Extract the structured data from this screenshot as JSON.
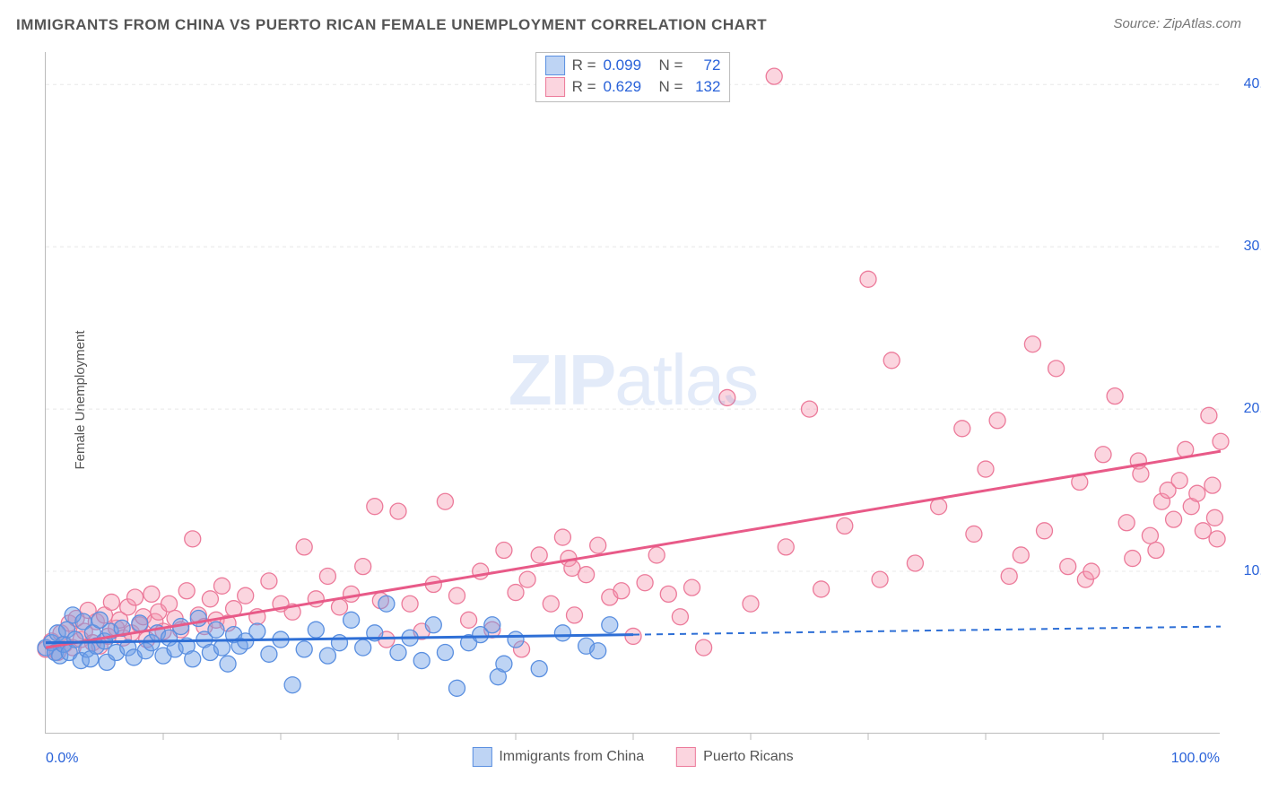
{
  "title": "IMMIGRANTS FROM CHINA VS PUERTO RICAN FEMALE UNEMPLOYMENT CORRELATION CHART",
  "source": "Source: ZipAtlas.com",
  "ylabel": "Female Unemployment",
  "watermark": {
    "bold": "ZIP",
    "light": "atlas"
  },
  "chart": {
    "type": "scatter",
    "xlim": [
      0,
      100
    ],
    "ylim": [
      0,
      42
    ],
    "x_ticks": [
      "0.0%",
      "100.0%"
    ],
    "y_ticks": [
      {
        "v": 10,
        "label": "10.0%"
      },
      {
        "v": 20,
        "label": "20.0%"
      },
      {
        "v": 30,
        "label": "30.0%"
      },
      {
        "v": 40,
        "label": "40.0%"
      }
    ],
    "short_x_ticks": [
      10,
      20,
      30,
      40,
      50,
      60,
      70,
      80,
      90
    ],
    "background_color": "#ffffff",
    "grid_color": "#e8e8e8",
    "axis_color": "#bbbbbb",
    "tick_label_color": "#2962d9"
  },
  "series": {
    "blue": {
      "label": "Immigrants from China",
      "R": "0.099",
      "N": "72",
      "fill": "rgba(110,160,230,0.45)",
      "stroke": "#5a8fe0",
      "line_color": "#2e6fd6",
      "line_dash_color": "#2e6fd6",
      "marker_r": 9,
      "trend": {
        "y_at_x0": 5.6,
        "y_at_x50": 6.1,
        "y_at_x100": 6.6
      },
      "points": [
        [
          0,
          5.3
        ],
        [
          0.5,
          5.6
        ],
        [
          0.8,
          5.0
        ],
        [
          1,
          6.2
        ],
        [
          1.2,
          4.8
        ],
        [
          1.5,
          5.5
        ],
        [
          1.8,
          6.4
        ],
        [
          2,
          5.0
        ],
        [
          2.3,
          7.3
        ],
        [
          2.5,
          5.8
        ],
        [
          3,
          4.5
        ],
        [
          3.2,
          6.9
        ],
        [
          3.5,
          5.2
        ],
        [
          3.8,
          4.6
        ],
        [
          4,
          6.2
        ],
        [
          4.3,
          5.4
        ],
        [
          4.6,
          7.0
        ],
        [
          5,
          5.7
        ],
        [
          5.2,
          4.4
        ],
        [
          5.5,
          6.3
        ],
        [
          6,
          5.0
        ],
        [
          6.5,
          6.5
        ],
        [
          7,
          5.3
        ],
        [
          7.5,
          4.7
        ],
        [
          8,
          6.8
        ],
        [
          8.5,
          5.1
        ],
        [
          9,
          5.6
        ],
        [
          9.5,
          6.2
        ],
        [
          10,
          4.8
        ],
        [
          10.5,
          5.9
        ],
        [
          11,
          5.2
        ],
        [
          11.5,
          6.6
        ],
        [
          12,
          5.4
        ],
        [
          12.5,
          4.6
        ],
        [
          13,
          7.1
        ],
        [
          13.5,
          5.8
        ],
        [
          14,
          5.0
        ],
        [
          14.5,
          6.4
        ],
        [
          15,
          5.3
        ],
        [
          15.5,
          4.3
        ],
        [
          16,
          6.1
        ],
        [
          16.5,
          5.4
        ],
        [
          17,
          5.7
        ],
        [
          18,
          6.3
        ],
        [
          19,
          4.9
        ],
        [
          20,
          5.8
        ],
        [
          21,
          3.0
        ],
        [
          22,
          5.2
        ],
        [
          23,
          6.4
        ],
        [
          24,
          4.8
        ],
        [
          25,
          5.6
        ],
        [
          26,
          7.0
        ],
        [
          27,
          5.3
        ],
        [
          28,
          6.2
        ],
        [
          29,
          8.0
        ],
        [
          30,
          5.0
        ],
        [
          31,
          5.9
        ],
        [
          32,
          4.5
        ],
        [
          33,
          6.7
        ],
        [
          34,
          5.0
        ],
        [
          35,
          2.8
        ],
        [
          36,
          5.6
        ],
        [
          37,
          6.1
        ],
        [
          38,
          6.7
        ],
        [
          38.5,
          3.5
        ],
        [
          39,
          4.3
        ],
        [
          40,
          5.8
        ],
        [
          42,
          4.0
        ],
        [
          44,
          6.2
        ],
        [
          46,
          5.4
        ],
        [
          47,
          5.1
        ],
        [
          48,
          6.7
        ]
      ]
    },
    "pink": {
      "label": "Puerto Ricans",
      "R": "0.629",
      "N": "132",
      "fill": "rgba(245,150,175,0.40)",
      "stroke": "#ec7a9a",
      "line_color": "#e85a88",
      "marker_r": 9,
      "trend": {
        "y_at_x0": 5.3,
        "y_at_x100": 17.4
      },
      "points": [
        [
          0,
          5.2
        ],
        [
          0.5,
          5.7
        ],
        [
          1,
          5.0
        ],
        [
          1.3,
          6.2
        ],
        [
          1.6,
          5.5
        ],
        [
          2,
          6.8
        ],
        [
          2.3,
          5.3
        ],
        [
          2.6,
          7.1
        ],
        [
          3,
          5.8
        ],
        [
          3.3,
          6.3
        ],
        [
          3.6,
          7.6
        ],
        [
          4,
          5.6
        ],
        [
          4.3,
          6.9
        ],
        [
          4.6,
          5.4
        ],
        [
          5,
          7.3
        ],
        [
          5.3,
          6.0
        ],
        [
          5.6,
          8.1
        ],
        [
          6,
          6.5
        ],
        [
          6.3,
          7.0
        ],
        [
          6.6,
          5.9
        ],
        [
          7,
          7.8
        ],
        [
          7.3,
          6.2
        ],
        [
          7.6,
          8.4
        ],
        [
          8,
          6.7
        ],
        [
          8.3,
          7.2
        ],
        [
          8.6,
          5.8
        ],
        [
          9,
          8.6
        ],
        [
          9.3,
          6.9
        ],
        [
          9.6,
          7.5
        ],
        [
          10,
          6.3
        ],
        [
          10.5,
          8.0
        ],
        [
          11,
          7.1
        ],
        [
          11.5,
          6.4
        ],
        [
          12,
          8.8
        ],
        [
          12.5,
          12.0
        ],
        [
          13,
          7.3
        ],
        [
          13.5,
          6.6
        ],
        [
          14,
          8.3
        ],
        [
          14.5,
          7.0
        ],
        [
          15,
          9.1
        ],
        [
          15.5,
          6.8
        ],
        [
          16,
          7.7
        ],
        [
          17,
          8.5
        ],
        [
          18,
          7.2
        ],
        [
          19,
          9.4
        ],
        [
          20,
          8.0
        ],
        [
          21,
          7.5
        ],
        [
          22,
          11.5
        ],
        [
          23,
          8.3
        ],
        [
          24,
          9.7
        ],
        [
          25,
          7.8
        ],
        [
          26,
          8.6
        ],
        [
          27,
          10.3
        ],
        [
          28,
          14.0
        ],
        [
          28.5,
          8.2
        ],
        [
          29,
          5.8
        ],
        [
          30,
          13.7
        ],
        [
          31,
          8.0
        ],
        [
          32,
          6.3
        ],
        [
          33,
          9.2
        ],
        [
          34,
          14.3
        ],
        [
          35,
          8.5
        ],
        [
          36,
          7.0
        ],
        [
          37,
          10.0
        ],
        [
          38,
          6.4
        ],
        [
          39,
          11.3
        ],
        [
          40,
          8.7
        ],
        [
          40.5,
          5.2
        ],
        [
          41,
          9.5
        ],
        [
          42,
          11.0
        ],
        [
          43,
          8.0
        ],
        [
          44,
          12.1
        ],
        [
          44.5,
          10.8
        ],
        [
          44.8,
          10.2
        ],
        [
          45,
          7.3
        ],
        [
          46,
          9.8
        ],
        [
          47,
          11.6
        ],
        [
          48,
          8.4
        ],
        [
          49,
          8.8
        ],
        [
          50,
          6.0
        ],
        [
          51,
          9.3
        ],
        [
          52,
          11.0
        ],
        [
          53,
          8.6
        ],
        [
          54,
          7.2
        ],
        [
          55,
          9.0
        ],
        [
          56,
          5.3
        ],
        [
          58,
          20.7
        ],
        [
          60,
          8.0
        ],
        [
          62,
          40.5
        ],
        [
          63,
          11.5
        ],
        [
          65,
          20.0
        ],
        [
          66,
          8.9
        ],
        [
          68,
          12.8
        ],
        [
          70,
          28.0
        ],
        [
          71,
          9.5
        ],
        [
          72,
          23.0
        ],
        [
          74,
          10.5
        ],
        [
          76,
          14.0
        ],
        [
          78,
          18.8
        ],
        [
          79,
          12.3
        ],
        [
          80,
          16.3
        ],
        [
          81,
          19.3
        ],
        [
          82,
          9.7
        ],
        [
          83,
          11.0
        ],
        [
          84,
          24.0
        ],
        [
          85,
          12.5
        ],
        [
          86,
          22.5
        ],
        [
          87,
          10.3
        ],
        [
          88,
          15.5
        ],
        [
          88.5,
          9.5
        ],
        [
          89,
          10.0
        ],
        [
          90,
          17.2
        ],
        [
          91,
          20.8
        ],
        [
          92,
          13.0
        ],
        [
          92.5,
          10.8
        ],
        [
          93,
          16.8
        ],
        [
          93.2,
          16.0
        ],
        [
          94,
          12.2
        ],
        [
          94.5,
          11.3
        ],
        [
          95,
          14.3
        ],
        [
          95.5,
          15.0
        ],
        [
          96,
          13.2
        ],
        [
          96.5,
          15.6
        ],
        [
          97,
          17.5
        ],
        [
          97.5,
          14.0
        ],
        [
          98,
          14.8
        ],
        [
          98.5,
          12.5
        ],
        [
          99,
          19.6
        ],
        [
          99.3,
          15.3
        ],
        [
          99.5,
          13.3
        ],
        [
          99.7,
          12.0
        ],
        [
          100,
          18.0
        ]
      ]
    }
  },
  "bottom_legend": [
    {
      "key": "blue",
      "label": "Immigrants from China"
    },
    {
      "key": "pink",
      "label": "Puerto Ricans"
    }
  ]
}
